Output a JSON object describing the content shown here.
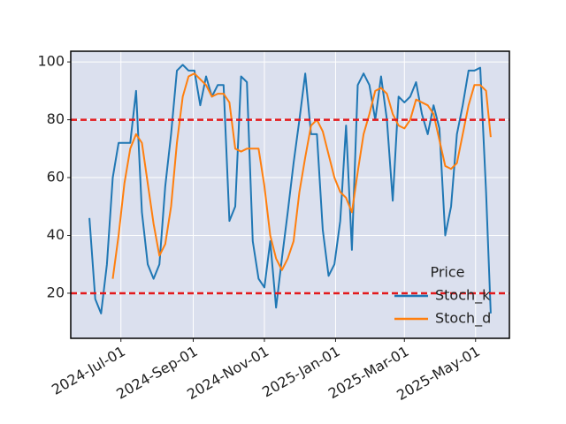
{
  "chart_data": {
    "type": "line",
    "legend_title": "Price",
    "legend": "lower right",
    "grid": true,
    "background": "#dbe0ee",
    "x": [
      "2024-06-04",
      "2024-06-09",
      "2024-06-14",
      "2024-06-19",
      "2024-06-24",
      "2024-06-29",
      "2024-07-04",
      "2024-07-09",
      "2024-07-14",
      "2024-07-19",
      "2024-07-24",
      "2024-07-29",
      "2024-08-03",
      "2024-08-08",
      "2024-08-13",
      "2024-08-18",
      "2024-08-23",
      "2024-08-28",
      "2024-09-02",
      "2024-09-07",
      "2024-09-12",
      "2024-09-17",
      "2024-09-22",
      "2024-09-27",
      "2024-10-02",
      "2024-10-07",
      "2024-10-12",
      "2024-10-17",
      "2024-10-22",
      "2024-10-27",
      "2024-11-01",
      "2024-11-06",
      "2024-11-11",
      "2024-11-16",
      "2024-11-21",
      "2024-11-26",
      "2024-12-01",
      "2024-12-06",
      "2024-12-11",
      "2024-12-16",
      "2024-12-21",
      "2024-12-26",
      "2024-12-31",
      "2025-01-05",
      "2025-01-10",
      "2025-01-15",
      "2025-01-20",
      "2025-01-25",
      "2025-01-30",
      "2025-02-04",
      "2025-02-09",
      "2025-02-14",
      "2025-02-19",
      "2025-02-24",
      "2025-03-01",
      "2025-03-06",
      "2025-03-11",
      "2025-03-16",
      "2025-03-21",
      "2025-03-26",
      "2025-03-31",
      "2025-04-05",
      "2025-04-10",
      "2025-04-15",
      "2025-04-20",
      "2025-04-25",
      "2025-04-30",
      "2025-05-05",
      "2025-05-10",
      "2025-05-14"
    ],
    "series": [
      {
        "name": "Stoch_k",
        "color": "#1f77b4",
        "values": [
          46,
          18,
          13,
          30,
          60,
          72,
          72,
          72,
          90,
          48,
          30,
          25,
          30,
          57,
          75,
          97,
          99,
          97,
          97,
          85,
          95,
          88,
          92,
          92,
          45,
          50,
          95,
          93,
          38,
          25,
          22,
          38,
          15,
          32,
          48,
          65,
          80,
          96,
          75,
          75,
          42,
          26,
          30,
          45,
          78,
          35,
          92,
          96,
          92,
          80,
          95,
          80,
          52,
          88,
          86,
          88,
          93,
          82,
          75,
          85,
          77,
          40,
          50,
          75,
          85,
          97,
          97,
          98,
          55,
          13
        ]
      },
      {
        "name": "Stoch_d",
        "color": "#ff7f0e",
        "values": [
          null,
          null,
          null,
          null,
          25,
          40,
          58,
          70,
          75,
          72,
          58,
          44,
          33,
          37,
          50,
          72,
          88,
          95,
          96,
          94,
          92,
          88,
          89,
          89,
          86,
          70,
          69,
          70,
          70,
          70,
          57,
          40,
          32,
          28,
          32,
          38,
          55,
          67,
          78,
          80,
          76,
          68,
          60,
          55,
          53,
          48,
          62,
          75,
          82,
          90,
          91,
          89,
          82,
          78,
          77,
          80,
          87,
          86,
          85,
          82,
          73,
          64,
          63,
          65,
          75,
          85,
          92,
          92,
          90,
          74
        ]
      }
    ],
    "hlines": [
      80,
      20
    ],
    "hline_color": "#e31a1c",
    "xlim": [
      "2024-05-19",
      "2025-05-30"
    ],
    "xticks": [
      {
        "value": "2024-07-01",
        "label": "2024-Jul-01"
      },
      {
        "value": "2024-09-01",
        "label": "2024-Sep-01"
      },
      {
        "value": "2024-11-01",
        "label": "2024-Nov-01"
      },
      {
        "value": "2025-01-01",
        "label": "2025-Jan-01"
      },
      {
        "value": "2025-03-01",
        "label": "2025-Mar-01"
      },
      {
        "value": "2025-05-01",
        "label": "2025-May-01"
      }
    ],
    "ylim": [
      4.4,
      103.7
    ],
    "yticks": [
      20,
      40,
      60,
      80,
      100
    ]
  }
}
